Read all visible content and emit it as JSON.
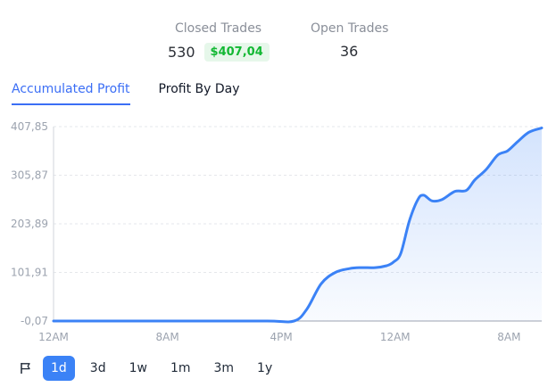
{
  "stats": {
    "closed_trades_label": "Closed Trades",
    "closed_trades_count": "530",
    "closed_profit": "$407,04",
    "open_trades_label": "Open Trades",
    "open_trades_count": "36"
  },
  "tabs": [
    {
      "label": "Accumulated Profit",
      "active": true
    },
    {
      "label": "Profit By Day",
      "active": false
    }
  ],
  "ranges": [
    {
      "label": "1d",
      "active": true
    },
    {
      "label": "3d",
      "active": false
    },
    {
      "label": "1w",
      "active": false
    },
    {
      "label": "1m",
      "active": false
    },
    {
      "label": "3m",
      "active": false
    },
    {
      "label": "1y",
      "active": false
    }
  ],
  "icons": {
    "flag": "flag-icon"
  },
  "colors": {
    "accent": "#3b6ef5",
    "line": "#3b82f6",
    "profit": "#12b833",
    "grid": "#e5e7eb"
  },
  "chart_data": {
    "type": "area",
    "title": "",
    "xlabel": "",
    "ylabel": "",
    "x_unit": "hours",
    "xlim": [
      0,
      34.3
    ],
    "ylim": [
      -0.07,
      407.85
    ],
    "y_ticks": [
      "407,85",
      "305,87",
      "203,89",
      "101,91",
      "-0,07"
    ],
    "y_tick_values": [
      407.85,
      305.87,
      203.89,
      101.91,
      -0.07
    ],
    "x_ticks": [
      "12AM",
      "8AM",
      "4PM",
      "12AM",
      "8AM"
    ],
    "x_tick_values": [
      0,
      8,
      16,
      24,
      32
    ],
    "grid": true,
    "series": [
      {
        "x": [
          0,
          5,
          10,
          15,
          16.9,
          17.8,
          18.8,
          19.8,
          20.8,
          21.6,
          22.6,
          23.4,
          23.9,
          24.4,
          25.0,
          25.6,
          26.0,
          26.6,
          27.3,
          28.2,
          29.0,
          29.6,
          30.4,
          31.2,
          31.9,
          32.6,
          33.4,
          34.3
        ],
        "y": [
          0,
          0,
          0,
          0,
          0,
          25,
          78,
          102,
          110,
          112,
          112,
          116,
          124,
          142,
          210,
          255,
          264,
          252,
          255,
          272,
          274,
          296,
          318,
          348,
          357,
          376,
          396,
          405
        ]
      }
    ]
  }
}
